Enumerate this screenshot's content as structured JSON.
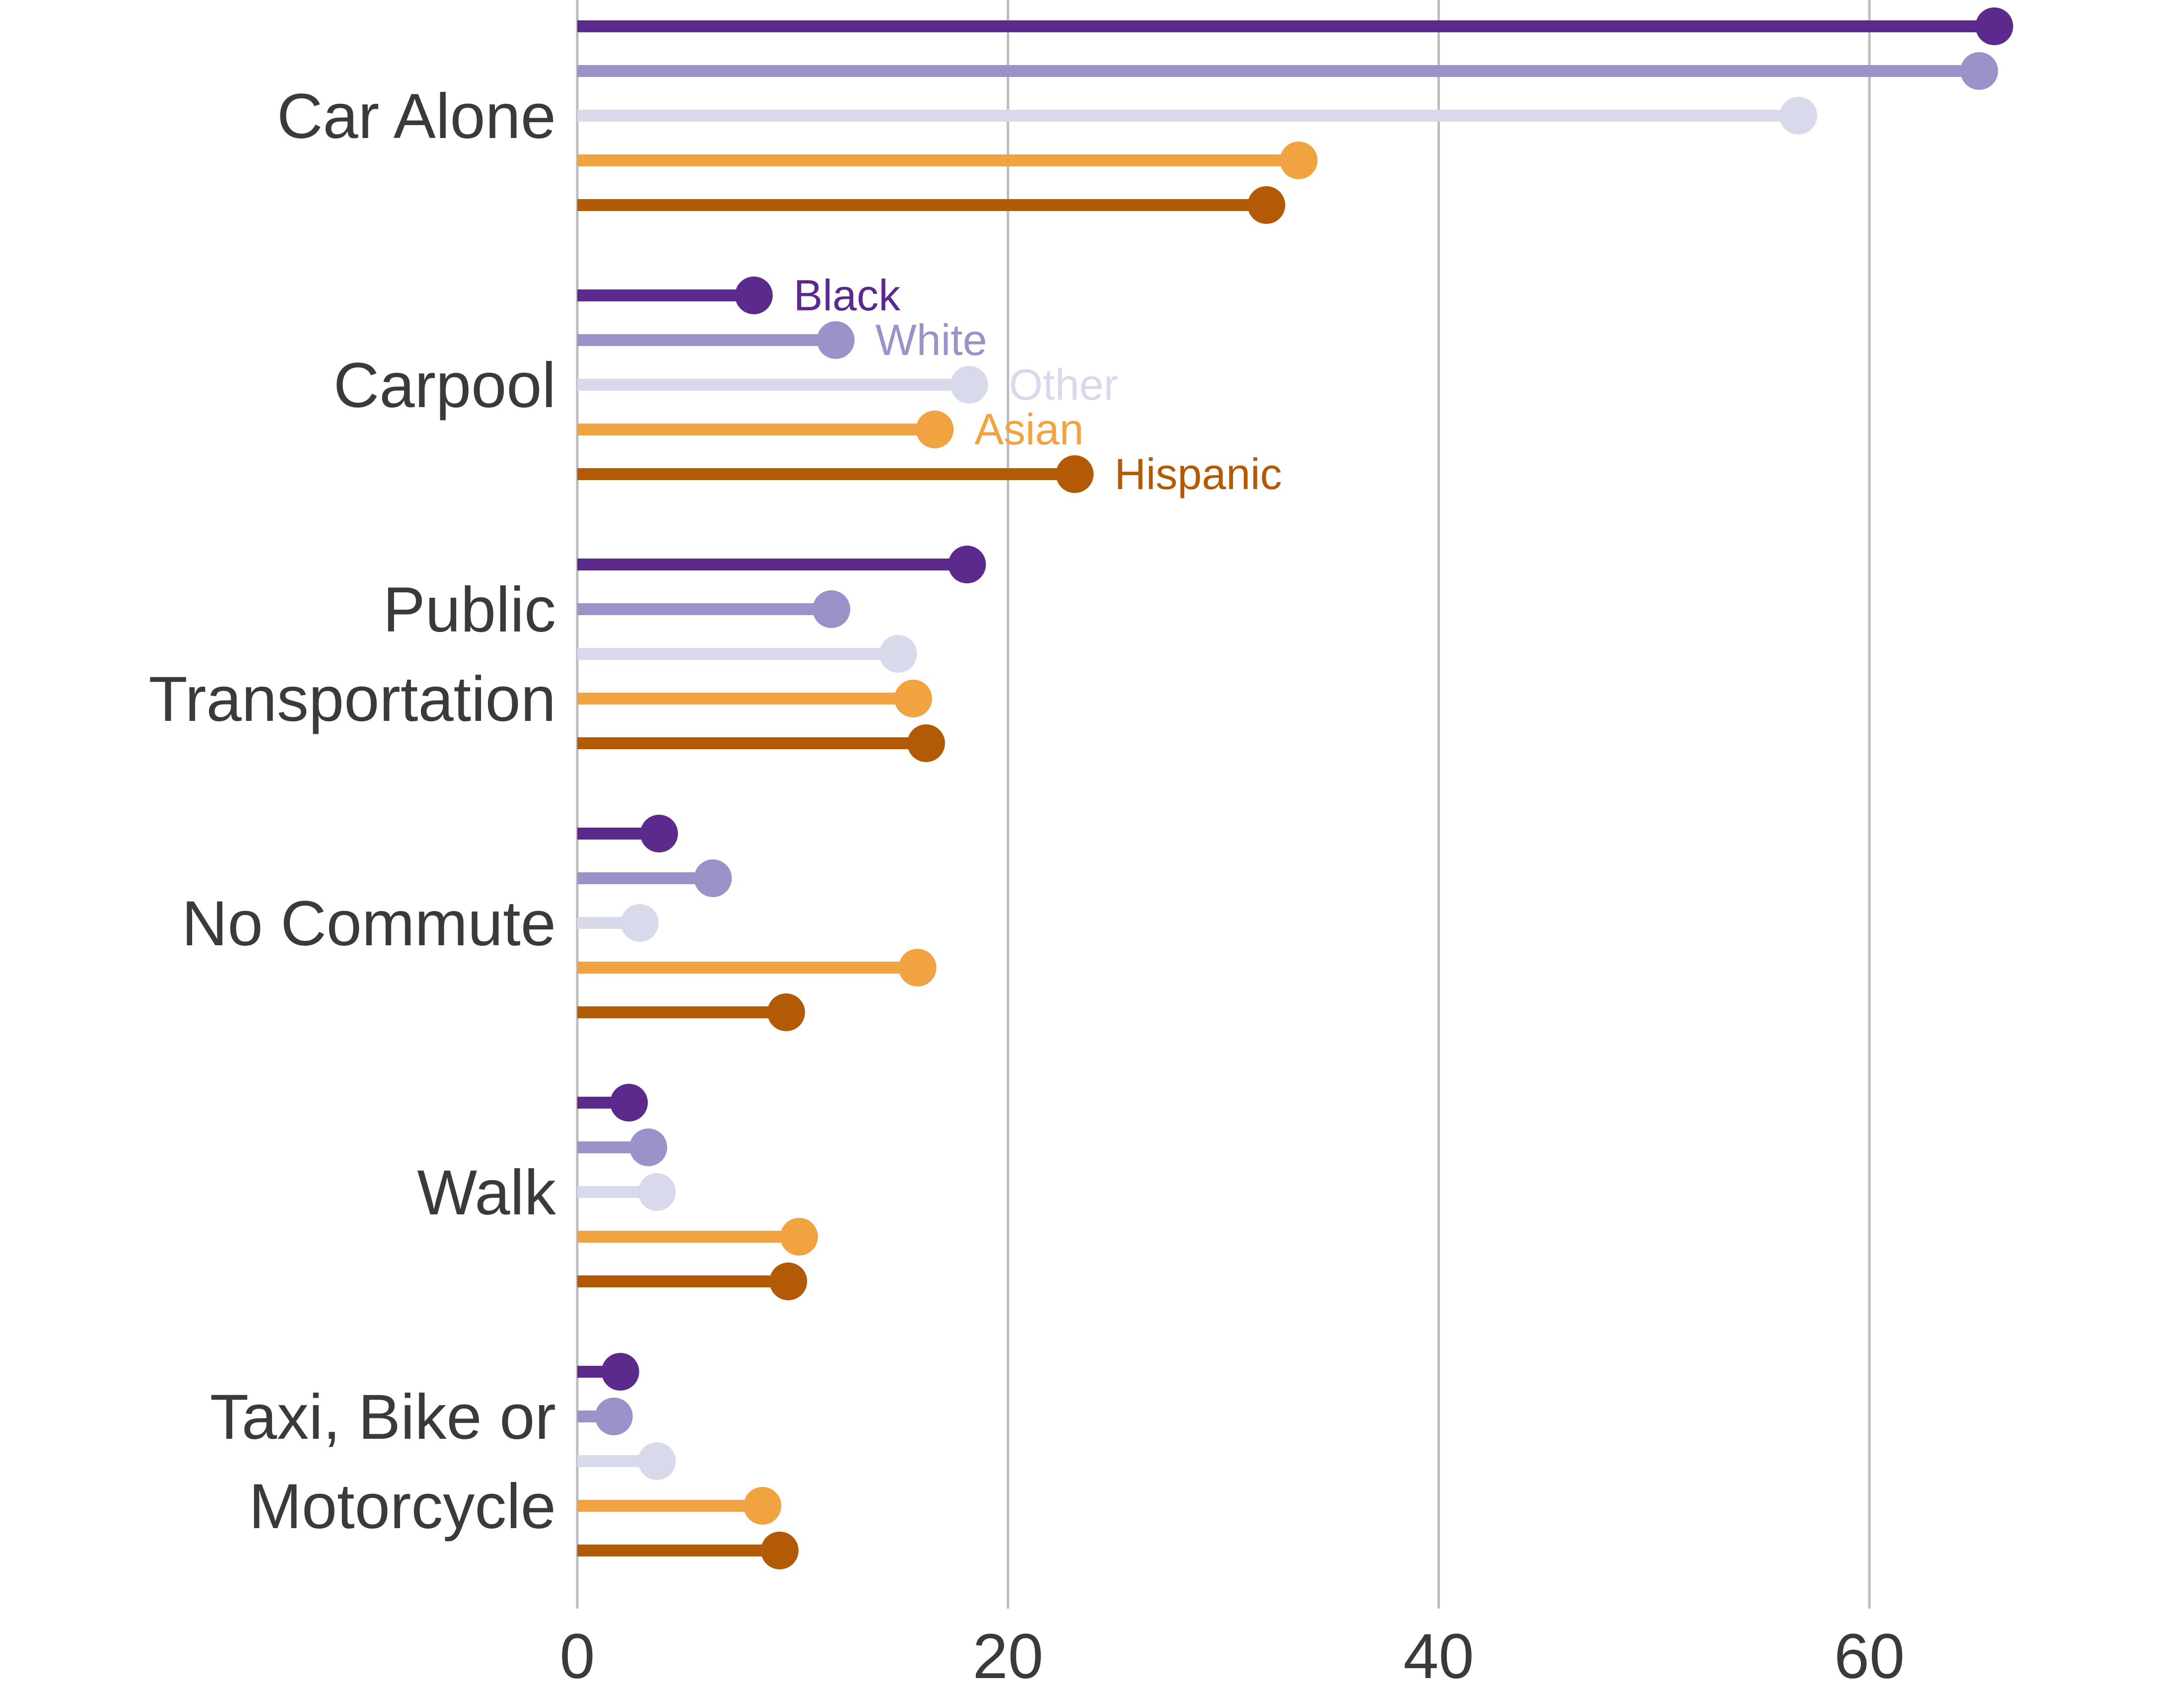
{
  "chart_data": {
    "type": "lollipop",
    "categories": [
      "Car Alone",
      "Carpool",
      "Public Transportation",
      "No Commute",
      "Walk",
      "Taxi, Bike or Motorcycle"
    ],
    "category_lines": [
      [
        "Car Alone"
      ],
      [
        "Carpool"
      ],
      [
        "Public",
        "Transportation"
      ],
      [
        "No Commute"
      ],
      [
        "Walk"
      ],
      [
        "Taxi, Bike or",
        "Motorcycle"
      ]
    ],
    "series": [
      {
        "name": "Black",
        "color": "#5b2a8c",
        "values": [
          65.8,
          8.2,
          18.1,
          3.8,
          2.4,
          2.0
        ]
      },
      {
        "name": "White",
        "color": "#9a92c8",
        "values": [
          65.1,
          12.0,
          11.8,
          6.3,
          3.3,
          1.7
        ]
      },
      {
        "name": "Other",
        "color": "#d9d9ec",
        "values": [
          56.7,
          18.2,
          14.9,
          2.9,
          3.7,
          3.7
        ]
      },
      {
        "name": "Asian",
        "color": "#f0a340",
        "values": [
          33.5,
          16.6,
          15.6,
          15.8,
          10.3,
          8.6
        ]
      },
      {
        "name": "Hispanic",
        "color": "#b35a06",
        "values": [
          32.0,
          23.1,
          16.2,
          9.7,
          9.8,
          9.4
        ]
      }
    ],
    "series_labels_on_category": "Carpool",
    "xlim": [
      0,
      70
    ],
    "x_ticks": [
      0,
      20,
      40,
      60
    ],
    "x_tick_labels": [
      "0",
      "20",
      "40",
      "60"
    ],
    "grid": "vertical",
    "title": "",
    "xlabel": "",
    "ylabel": ""
  }
}
